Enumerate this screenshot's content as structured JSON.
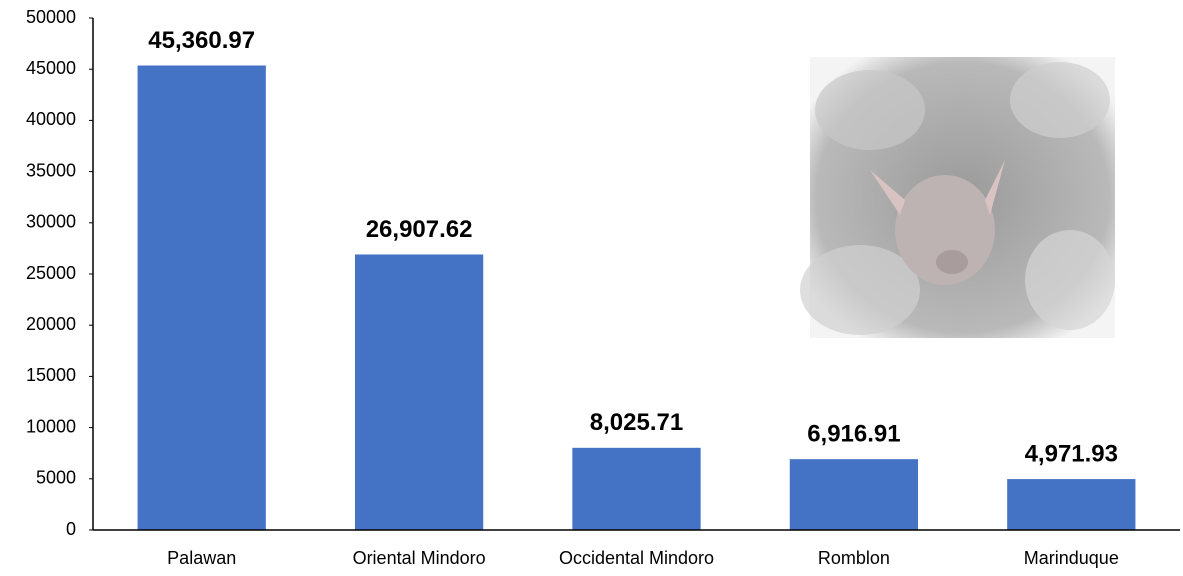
{
  "chart_data": {
    "type": "bar",
    "categories": [
      "Palawan",
      "Oriental Mindoro",
      "Occidental Mindoro",
      "Romblon",
      "Marinduque"
    ],
    "values": [
      45360.97,
      26907.62,
      8025.71,
      6916.91,
      4971.93
    ],
    "value_labels": [
      "45,360.97",
      "26,907.62",
      "8,025.71",
      "6,916.91",
      "4,971.93"
    ],
    "color": "#4472c4",
    "ylim": [
      0,
      50000
    ],
    "yticks": [
      0,
      5000,
      10000,
      15000,
      20000,
      25000,
      30000,
      35000,
      40000,
      45000,
      50000
    ],
    "grid": false
  }
}
